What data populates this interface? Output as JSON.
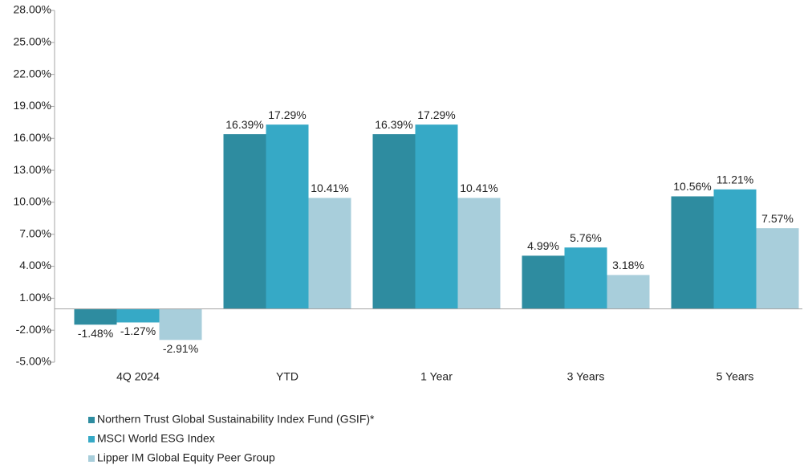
{
  "chart_data": {
    "type": "bar",
    "categories": [
      "4Q 2024",
      "YTD",
      "1 Year",
      "3 Years",
      "5 Years"
    ],
    "series": [
      {
        "name": "Northern Trust Global Sustainability Index Fund (GSIF)*",
        "color": "#2e8ca0",
        "values": [
          -1.48,
          16.39,
          16.39,
          4.99,
          10.56
        ],
        "value_labels": [
          "-1.48%",
          "16.39%",
          "16.39%",
          "4.99%",
          "10.56%"
        ]
      },
      {
        "name": "MSCI World ESG  Index",
        "color": "#36a9c6",
        "values": [
          -1.27,
          17.29,
          17.29,
          5.76,
          11.21
        ],
        "value_labels": [
          "-1.27%",
          "17.29%",
          "17.29%",
          "5.76%",
          "11.21%"
        ]
      },
      {
        "name": "Lipper IM Global Equity Peer Group",
        "color": "#a8cedb",
        "values": [
          -2.91,
          10.41,
          10.41,
          3.18,
          7.57
        ],
        "value_labels": [
          "-2.91%",
          "10.41%",
          "10.41%",
          "3.18%",
          "7.57%"
        ]
      }
    ],
    "ylim": [
      -5,
      28
    ],
    "yticks": [
      {
        "value": -5,
        "label": "-5.00%"
      },
      {
        "value": -2,
        "label": "-2.00%"
      },
      {
        "value": 1,
        "label": "1.00%"
      },
      {
        "value": 4,
        "label": "4.00%"
      },
      {
        "value": 7,
        "label": "7.00%"
      },
      {
        "value": 10,
        "label": "10.00%"
      },
      {
        "value": 13,
        "label": "13.00%"
      },
      {
        "value": 16,
        "label": "16.00%"
      },
      {
        "value": 19,
        "label": "19.00%"
      },
      {
        "value": 22,
        "label": "22.00%"
      },
      {
        "value": 25,
        "label": "25.00%"
      },
      {
        "value": 28,
        "label": "28.00%"
      }
    ],
    "grid": false,
    "legend": "bottom-left"
  }
}
